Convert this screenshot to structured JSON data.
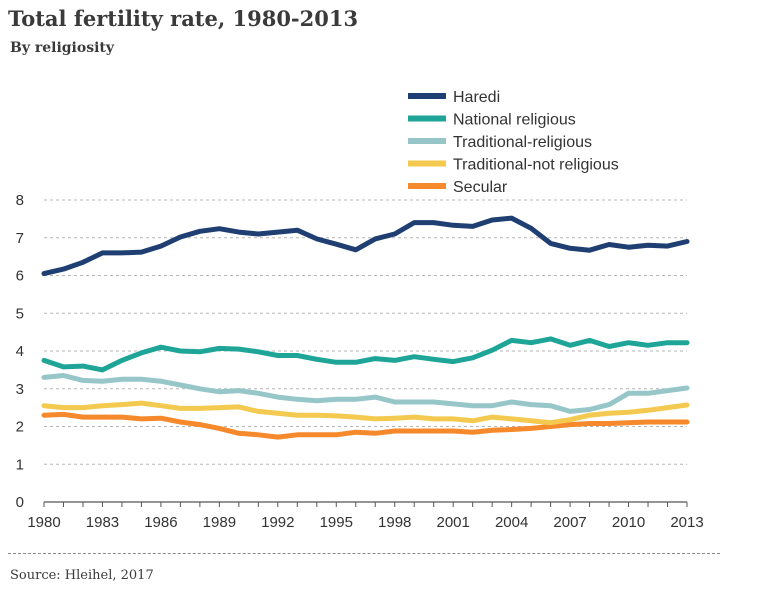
{
  "header": {
    "title": "Total fertility rate, 1980-2013",
    "subtitle": "By religiosity"
  },
  "footer": {
    "source": "Source: Hleihel, 2017"
  },
  "chart_data": {
    "type": "line",
    "title": "Total fertility rate, 1980-2013",
    "subtitle": "By religiosity",
    "xlabel": "",
    "ylabel": "",
    "xlim": [
      1980,
      2013
    ],
    "ylim": [
      0,
      8
    ],
    "yticks": [
      0,
      1,
      2,
      3,
      4,
      5,
      6,
      7,
      8
    ],
    "xticks": [
      1980,
      1983,
      1986,
      1989,
      1992,
      1995,
      1998,
      2001,
      2004,
      2007,
      2010,
      2013
    ],
    "grid": "horizontal dashed",
    "legend_position": "top-right",
    "x": [
      1980,
      1981,
      1982,
      1983,
      1984,
      1985,
      1986,
      1987,
      1988,
      1989,
      1990,
      1991,
      1992,
      1993,
      1994,
      1995,
      1996,
      1997,
      1998,
      1999,
      2000,
      2001,
      2002,
      2003,
      2004,
      2005,
      2006,
      2007,
      2008,
      2009,
      2010,
      2011,
      2012,
      2013
    ],
    "series": [
      {
        "name": "Haredi",
        "color": "#1f3f73",
        "values": [
          6.05,
          6.17,
          6.35,
          6.6,
          6.6,
          6.62,
          6.78,
          7.02,
          7.17,
          7.24,
          7.15,
          7.1,
          7.15,
          7.2,
          6.97,
          6.83,
          6.68,
          6.97,
          7.1,
          7.4,
          7.4,
          7.33,
          7.3,
          7.47,
          7.52,
          7.25,
          6.85,
          6.72,
          6.67,
          6.82,
          6.75,
          6.8,
          6.78,
          6.9
        ]
      },
      {
        "name": "National religious",
        "color": "#1ea597",
        "values": [
          3.75,
          3.58,
          3.6,
          3.5,
          3.75,
          3.95,
          4.1,
          4.0,
          3.98,
          4.07,
          4.05,
          3.98,
          3.88,
          3.88,
          3.78,
          3.7,
          3.7,
          3.8,
          3.75,
          3.85,
          3.78,
          3.72,
          3.82,
          4.02,
          4.28,
          4.22,
          4.32,
          4.15,
          4.28,
          4.12,
          4.22,
          4.15,
          4.22,
          4.22
        ]
      },
      {
        "name": "Traditional-religious",
        "color": "#96c6c8",
        "values": [
          3.3,
          3.35,
          3.22,
          3.2,
          3.25,
          3.25,
          3.2,
          3.1,
          3.0,
          2.92,
          2.95,
          2.88,
          2.78,
          2.72,
          2.68,
          2.72,
          2.72,
          2.78,
          2.65,
          2.65,
          2.65,
          2.6,
          2.55,
          2.55,
          2.65,
          2.58,
          2.55,
          2.4,
          2.45,
          2.58,
          2.88,
          2.88,
          2.95,
          3.02
        ]
      },
      {
        "name": "Traditional-not religious",
        "color": "#f3c94f",
        "values": [
          2.55,
          2.5,
          2.5,
          2.55,
          2.58,
          2.62,
          2.55,
          2.48,
          2.48,
          2.5,
          2.52,
          2.4,
          2.35,
          2.3,
          2.3,
          2.28,
          2.25,
          2.2,
          2.22,
          2.25,
          2.2,
          2.2,
          2.15,
          2.25,
          2.2,
          2.15,
          2.1,
          2.18,
          2.3,
          2.35,
          2.38,
          2.43,
          2.5,
          2.57
        ]
      },
      {
        "name": "Secular",
        "color": "#f5892b",
        "values": [
          2.3,
          2.32,
          2.25,
          2.25,
          2.25,
          2.2,
          2.22,
          2.12,
          2.05,
          1.95,
          1.82,
          1.78,
          1.72,
          1.78,
          1.78,
          1.78,
          1.85,
          1.82,
          1.88,
          1.88,
          1.88,
          1.88,
          1.85,
          1.9,
          1.92,
          1.95,
          2.0,
          2.05,
          2.08,
          2.08,
          2.1,
          2.12,
          2.12,
          2.12
        ]
      }
    ]
  }
}
